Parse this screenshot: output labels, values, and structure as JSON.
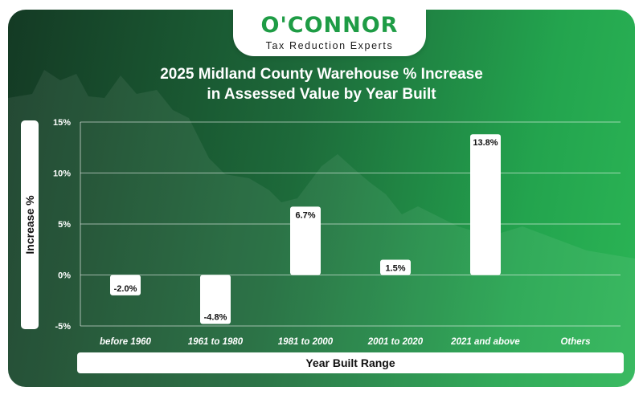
{
  "logo": {
    "name": "O'CONNOR",
    "tagline": "Tax Reduction Experts"
  },
  "chart_data": {
    "type": "bar",
    "title_lines": [
      "2025 Midland County Warehouse % Increase",
      "in Assessed Value by Year Built"
    ],
    "xlabel": "Year Built Range",
    "ylabel": "Increase %",
    "categories": [
      "before 1960",
      "1961 to 1980",
      "1981 to 2000",
      "2001 to 2020",
      "2021 and above",
      "Others"
    ],
    "values": [
      -2.0,
      -4.8,
      6.7,
      1.5,
      13.8,
      null
    ],
    "value_labels": [
      "-2.0%",
      "-4.8%",
      "6.7%",
      "1.5%",
      "13.8%",
      ""
    ],
    "yticks": [
      15,
      10,
      5,
      0,
      -5
    ],
    "ytick_labels": [
      "15%",
      "10%",
      "5%",
      "0%",
      "-5%"
    ],
    "ylim": [
      -5,
      15
    ],
    "grid": true,
    "colors": {
      "bar": "#ffffff",
      "grid": "#ffffff",
      "text": "#ffffff",
      "label_text": "#111111"
    }
  }
}
